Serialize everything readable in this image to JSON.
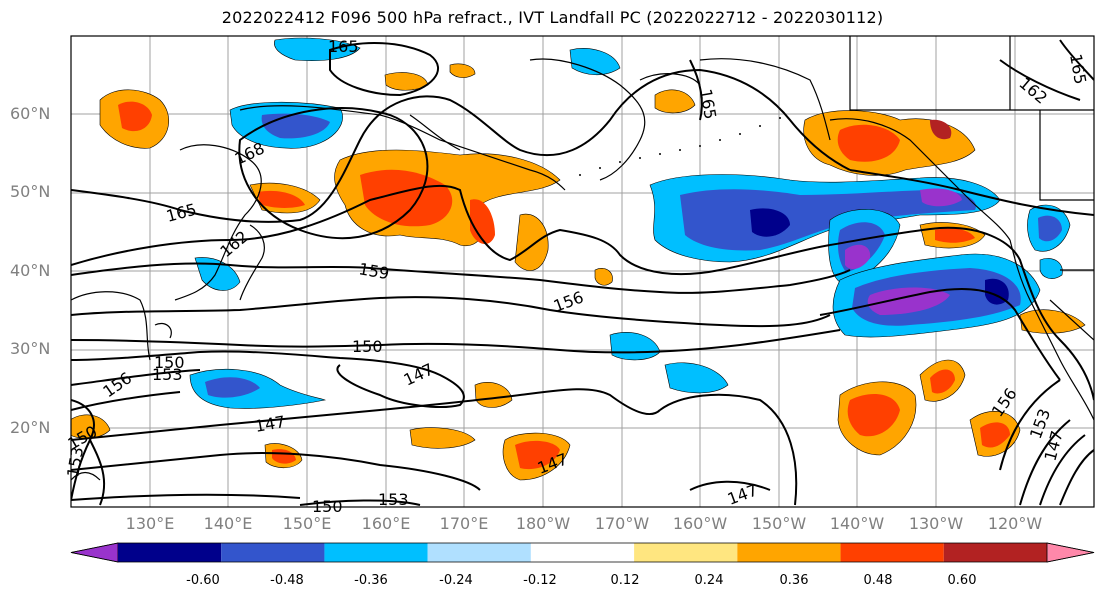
{
  "title": "2022022412 F096 500 hPa refract., IVT Landfall PC (2022022712 - 2022030112)",
  "lat_labels": [
    "60°N",
    "50°N",
    "40°N",
    "30°N",
    "20°N"
  ],
  "lon_labels": [
    "130°E",
    "140°E",
    "150°E",
    "160°E",
    "170°E",
    "180°W",
    "170°W",
    "160°W",
    "150°W",
    "140°W",
    "130°W",
    "120°W"
  ],
  "colorbar": {
    "colors": [
      "#9933cc",
      "#00008b",
      "#3355cc",
      "#00bfff",
      "#b0e0ff",
      "#ffffff",
      "#ffe680",
      "#ffa500",
      "#ff4000",
      "#b22222",
      "#ff88aa"
    ],
    "ticks": [
      "-0.60",
      "-0.48",
      "-0.36",
      "-0.24",
      "-0.12",
      "0.12",
      "0.24",
      "0.36",
      "0.48",
      "0.60"
    ]
  },
  "contour_labels": [
    "165",
    "168",
    "165",
    "162",
    "159",
    "156",
    "150",
    "150",
    "153",
    "156",
    "147",
    "147",
    "150",
    "153",
    "147",
    "147",
    "153",
    "156",
    "153",
    "150",
    "147",
    "165",
    "162",
    "165"
  ]
}
